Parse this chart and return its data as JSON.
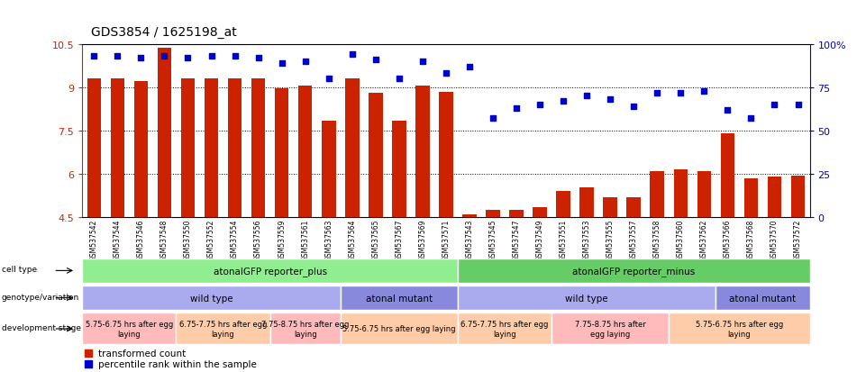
{
  "title": "GDS3854 / 1625198_at",
  "samples": [
    "GSM537542",
    "GSM537544",
    "GSM537546",
    "GSM537548",
    "GSM537550",
    "GSM537552",
    "GSM537554",
    "GSM537556",
    "GSM537559",
    "GSM537561",
    "GSM537563",
    "GSM537564",
    "GSM537565",
    "GSM537567",
    "GSM537569",
    "GSM537571",
    "GSM537543",
    "GSM537545",
    "GSM537547",
    "GSM537549",
    "GSM537551",
    "GSM537553",
    "GSM537555",
    "GSM537557",
    "GSM537558",
    "GSM537560",
    "GSM537562",
    "GSM537566",
    "GSM537568",
    "GSM537570",
    "GSM537572"
  ],
  "bar_values": [
    9.3,
    9.3,
    9.2,
    10.35,
    9.3,
    9.3,
    9.3,
    9.3,
    8.95,
    9.05,
    7.85,
    9.3,
    8.8,
    7.85,
    9.05,
    8.85,
    4.6,
    4.75,
    4.75,
    4.85,
    5.4,
    5.55,
    5.2,
    5.2,
    6.1,
    6.15,
    6.1,
    7.4,
    5.85,
    5.9,
    5.95
  ],
  "percentile_values": [
    93,
    93,
    92,
    93,
    92,
    93,
    93,
    92,
    89,
    90,
    80,
    94,
    91,
    80,
    90,
    83,
    87,
    57,
    63,
    65,
    67,
    70,
    68,
    64,
    72,
    72,
    73,
    62,
    57,
    65,
    65
  ],
  "ylim_left": [
    4.5,
    10.5
  ],
  "ylim_right": [
    0,
    100
  ],
  "yticks_left": [
    4.5,
    6.0,
    7.5,
    9.0,
    10.5
  ],
  "yticks_left_labels": [
    "4.5",
    "6",
    "7.5",
    "9",
    "10.5"
  ],
  "yticks_right": [
    0,
    25,
    50,
    75,
    100
  ],
  "yticks_right_labels": [
    "0",
    "25",
    "50",
    "75",
    "100%"
  ],
  "bar_color": "#CC2200",
  "dot_color": "#0000CC",
  "cell_type_regions": [
    {
      "label": "atonalGFP reporter_plus",
      "start": 0,
      "end": 15,
      "color": "#90EE90"
    },
    {
      "label": "atonalGFP reporter_minus",
      "start": 16,
      "end": 30,
      "color": "#66CC66"
    }
  ],
  "genotype_regions": [
    {
      "label": "wild type",
      "start": 0,
      "end": 10,
      "color": "#AAAAEE"
    },
    {
      "label": "atonal mutant",
      "start": 11,
      "end": 15,
      "color": "#8888DD"
    },
    {
      "label": "wild type",
      "start": 16,
      "end": 26,
      "color": "#AAAAEE"
    },
    {
      "label": "atonal mutant",
      "start": 27,
      "end": 30,
      "color": "#8888DD"
    }
  ],
  "dev_stage_regions": [
    {
      "label": "5.75-6.75 hrs after egg\nlaying",
      "start": 0,
      "end": 3,
      "color": "#FFBBBB"
    },
    {
      "label": "6.75-7.75 hrs after egg\nlaying",
      "start": 4,
      "end": 7,
      "color": "#FFCCAA"
    },
    {
      "label": "7.75-8.75 hrs after egg\nlaying",
      "start": 8,
      "end": 10,
      "color": "#FFBBBB"
    },
    {
      "label": "5.75-6.75 hrs after egg laying",
      "start": 11,
      "end": 15,
      "color": "#FFCCAA"
    },
    {
      "label": "6.75-7.75 hrs after egg\nlaying",
      "start": 16,
      "end": 19,
      "color": "#FFCCAA"
    },
    {
      "label": "7.75-8.75 hrs after\negg laying",
      "start": 20,
      "end": 24,
      "color": "#FFBBBB"
    },
    {
      "label": "5.75-6.75 hrs after egg\nlaying",
      "start": 25,
      "end": 30,
      "color": "#FFCCAA"
    }
  ]
}
